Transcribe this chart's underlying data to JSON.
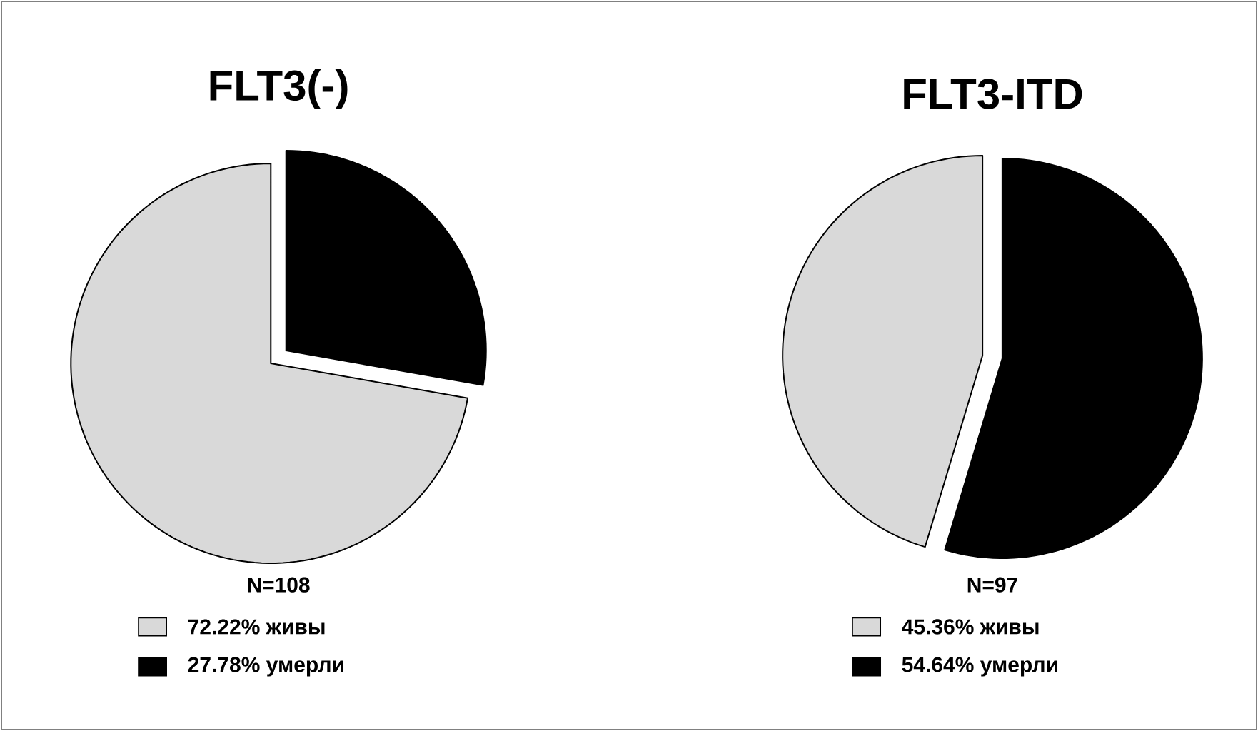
{
  "chart_data": [
    {
      "type": "pie",
      "title": "FLT3(-)",
      "categories": [
        "72.22% живы",
        "27.78% умерли"
      ],
      "values": [
        72.22,
        27.78
      ],
      "colors": [
        "#d9d9d9",
        "#000000"
      ],
      "legend": "bottom",
      "annotations": [
        "N=108"
      ]
    },
    {
      "type": "pie",
      "title": "FLT3-ITD",
      "categories": [
        "45.36% живы",
        "54.64% умерли"
      ],
      "values": [
        45.36,
        54.64
      ],
      "colors": [
        "#d9d9d9",
        "#000000"
      ],
      "legend": "bottom",
      "annotations": [
        "N=97"
      ]
    }
  ]
}
